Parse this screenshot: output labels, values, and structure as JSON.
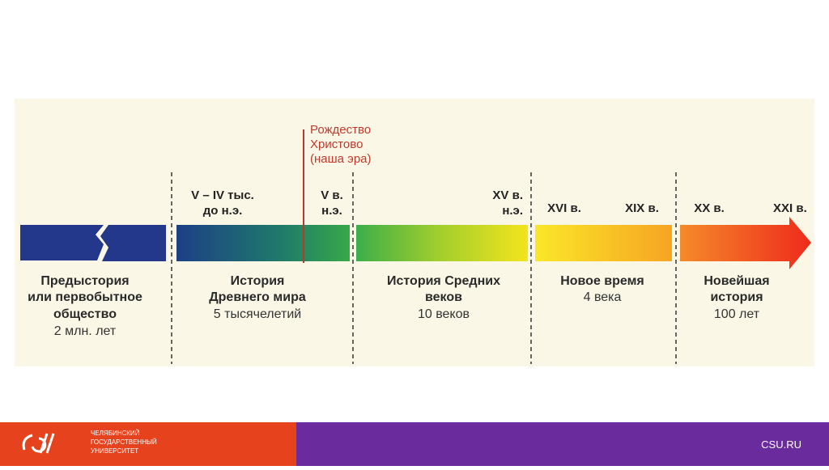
{
  "timeline": {
    "era_marker": {
      "lines": [
        "Рождество",
        "Христово",
        "(наша эра)"
      ]
    },
    "markers": [
      {
        "lines": [
          "V – IV тыс.",
          "до н.э."
        ]
      },
      {
        "lines": [
          "V в.",
          "н.э."
        ]
      },
      {
        "lines": [
          "XV в.",
          "н.э."
        ]
      },
      {
        "lines": [
          "XVI в."
        ]
      },
      {
        "lines": [
          "XIX в."
        ]
      },
      {
        "lines": [
          "XX в."
        ]
      },
      {
        "lines": [
          "XXI в."
        ]
      }
    ],
    "periods": [
      {
        "lines": [
          "Предыстория",
          "или первобытное",
          "общество"
        ],
        "duration": "2 млн. лет"
      },
      {
        "lines": [
          "История",
          "Древнего мира"
        ],
        "duration": "5 тысячелетий"
      },
      {
        "lines": [
          "История Средних",
          "веков"
        ],
        "duration": "10 веков"
      },
      {
        "lines": [
          "Новое время"
        ],
        "duration": "4 века"
      },
      {
        "lines": [
          "Новейшая",
          "история"
        ],
        "duration": "100 лет"
      }
    ]
  },
  "footer": {
    "university": [
      "ЧЕЛЯБИНСКИЙ",
      "ГОСУДАРСТВЕННЫЙ",
      "УНИВЕРСИТЕТ"
    ],
    "site": "CSU.RU"
  }
}
